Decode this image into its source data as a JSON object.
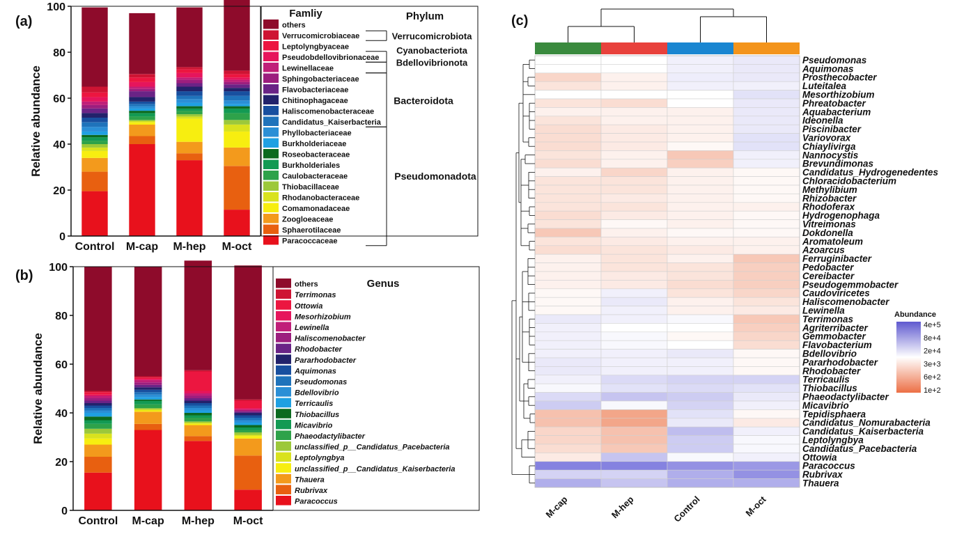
{
  "panel_labels": {
    "a": "(a)",
    "b": "(b)",
    "c": "(c)"
  },
  "chart_data": [
    {
      "panel": "a",
      "type": "bar",
      "stacked": true,
      "ylabel": "Relative abundance",
      "ylim": [
        0,
        100
      ],
      "yticks": [
        "0",
        "20",
        "40",
        "60",
        "80",
        "100"
      ],
      "categories": [
        "Control",
        "M-cap",
        "M-hep",
        "M-oct"
      ],
      "legend_title": "Famliy",
      "legend_title2": "Phylum",
      "series": [
        {
          "name": "Paracoccaceae",
          "color": "#e8111c",
          "values": [
            19.5,
            40,
            33,
            11.5
          ]
        },
        {
          "name": "Sphaerotilaceae",
          "color": "#e86010",
          "values": [
            8.5,
            3.5,
            3,
            19
          ]
        },
        {
          "name": "Zoogloeaceae",
          "color": "#f39a1c",
          "values": [
            6,
            5,
            5,
            8
          ]
        },
        {
          "name": "Comamonadaceae",
          "color": "#f7ee10",
          "values": [
            3,
            1,
            10,
            7
          ]
        },
        {
          "name": "Rhodanobacteraceae",
          "color": "#d9e21e",
          "values": [
            1.5,
            0.5,
            1,
            3
          ]
        },
        {
          "name": "Thiobacillaceae",
          "color": "#9cc83a",
          "values": [
            1.5,
            0.5,
            1,
            2
          ]
        },
        {
          "name": "Caulobacteraceae",
          "color": "#2ea24a",
          "values": [
            1.5,
            1.5,
            1.5,
            3
          ]
        },
        {
          "name": "Burkholderiales",
          "color": "#139a53",
          "values": [
            1.5,
            1.5,
            1,
            2
          ]
        },
        {
          "name": "Roseobacteraceae",
          "color": "#0c6a1f",
          "values": [
            1,
            1,
            1,
            1
          ]
        },
        {
          "name": "Burkholderiaceae",
          "color": "#1fa0e2",
          "values": [
            1.5,
            1,
            1.5,
            1
          ]
        },
        {
          "name": "Phyllobacteriaceae",
          "color": "#2b8fd6",
          "values": [
            2,
            1,
            1.5,
            1.5
          ]
        },
        {
          "name": "Candidatus_Kaiserbacteria",
          "color": "#1f73bb",
          "values": [
            2,
            1,
            1.5,
            2
          ]
        },
        {
          "name": "Haliscomenobacteraceae",
          "color": "#184f9f",
          "values": [
            2,
            1,
            2,
            2
          ]
        },
        {
          "name": "Chitinophagaceae",
          "color": "#22226b",
          "values": [
            2,
            2,
            2,
            1.5
          ]
        },
        {
          "name": "Flavobacteriaceae",
          "color": "#6a2386",
          "values": [
            2,
            2.5,
            1.5,
            1.5
          ]
        },
        {
          "name": "Sphingobacteriaceae",
          "color": "#9c1e7e",
          "values": [
            1.5,
            1,
            1.5,
            1
          ]
        },
        {
          "name": "Lewinellaceae",
          "color": "#c01f79",
          "values": [
            1.5,
            1,
            1,
            1
          ]
        },
        {
          "name": "Pseudobdellovibrionaceae",
          "color": "#e6155c",
          "values": [
            2,
            2,
            2,
            1
          ]
        },
        {
          "name": "Leptolyngbyaceae",
          "color": "#ec1640",
          "values": [
            2,
            2,
            1.5,
            1.5
          ]
        },
        {
          "name": "Verrucomicrobiaceae",
          "color": "#ce1433",
          "values": [
            2.5,
            1.5,
            1,
            1.5
          ]
        },
        {
          "name": "others",
          "color": "#8e0b2b",
          "values": [
            34.5,
            26.5,
            26,
            31
          ]
        }
      ],
      "phyla": [
        "Verrucomicrobiota",
        "Cyanobacteriota",
        "Bdellovibrionota",
        "Bacteroidota",
        "Pseudomonadota"
      ]
    },
    {
      "panel": "b",
      "type": "bar",
      "stacked": true,
      "ylabel": "Relative abundance",
      "ylim": [
        0,
        100
      ],
      "yticks": [
        "0",
        "20",
        "40",
        "60",
        "80",
        "100"
      ],
      "categories": [
        "Control",
        "M-cap",
        "M-hep",
        "M-oct"
      ],
      "legend_title": "Genus",
      "series": [
        {
          "name": "Paracoccus",
          "color": "#e8111c",
          "values": [
            15.5,
            33,
            28.5,
            8.5
          ]
        },
        {
          "name": "Rubrivax",
          "color": "#e86010",
          "values": [
            6.5,
            2.5,
            2,
            14
          ]
        },
        {
          "name": "Thauera",
          "color": "#f39a1c",
          "values": [
            5,
            5,
            4.5,
            7
          ]
        },
        {
          "name": "unclassified_p__Candidatus_Kaiserbacteria",
          "color": "#f7ee10",
          "values": [
            2.5,
            0.5,
            0.5,
            1
          ]
        },
        {
          "name": "Leptolyngbya",
          "color": "#d9e21e",
          "values": [
            2,
            0.5,
            0.5,
            0.5
          ]
        },
        {
          "name": "unclassified_p__Candidatus_Pacebacteria",
          "color": "#9cc83a",
          "values": [
            2,
            0.5,
            0.5,
            1
          ]
        },
        {
          "name": "Phaeodactylibacter",
          "color": "#2ea24a",
          "values": [
            2,
            1.5,
            1.5,
            1
          ]
        },
        {
          "name": "Micavibrio",
          "color": "#139a53",
          "values": [
            1.5,
            1.5,
            1,
            1
          ]
        },
        {
          "name": "Thiobacillus",
          "color": "#0c6a1f",
          "values": [
            1.5,
            0.5,
            1,
            1
          ]
        },
        {
          "name": "Terricaulis",
          "color": "#1fa0e2",
          "values": [
            1.5,
            1,
            1,
            1
          ]
        },
        {
          "name": "Bdellovibrio",
          "color": "#2b8fd6",
          "values": [
            1,
            1,
            1,
            1
          ]
        },
        {
          "name": "Pseudomonas",
          "color": "#1f73bb",
          "values": [
            1,
            1,
            1,
            1
          ]
        },
        {
          "name": "Aquimonas",
          "color": "#184f9f",
          "values": [
            1,
            1,
            1,
            1
          ]
        },
        {
          "name": "Pararhodobacter",
          "color": "#22226b",
          "values": [
            1,
            1,
            1,
            1
          ]
        },
        {
          "name": "Rhodobacter",
          "color": "#6a2386",
          "values": [
            1,
            1,
            1,
            0.5
          ]
        },
        {
          "name": "Haliscomenobacter",
          "color": "#9c1e7e",
          "values": [
            1,
            1,
            1,
            0.5
          ]
        },
        {
          "name": "Lewinella",
          "color": "#c01f79",
          "values": [
            1,
            1,
            1,
            0.5
          ]
        },
        {
          "name": "Mesorhizobium",
          "color": "#e6155c",
          "values": [
            0.5,
            0.5,
            1,
            0.5
          ]
        },
        {
          "name": "Ottowia",
          "color": "#ec1640",
          "values": [
            1,
            0.5,
            8,
            3
          ]
        },
        {
          "name": "Terrimonas",
          "color": "#ce1433",
          "values": [
            0.5,
            0.5,
            0.5,
            0.5
          ]
        },
        {
          "name": "others",
          "color": "#8e0b2b",
          "values": [
            51,
            45,
            45,
            55
          ]
        }
      ]
    },
    {
      "panel": "c",
      "type": "heatmap",
      "columns": [
        "M-cap",
        "M-hep",
        "Control",
        "M-oct"
      ],
      "column_colors": [
        "#3a8a3e",
        "#e8413c",
        "#1a86d1",
        "#f3941c"
      ],
      "legend_title": "Abundance",
      "legend_ticks": [
        "4e+5",
        "8e+4",
        "2e+4",
        "3e+3",
        "6e+2",
        "1e+2"
      ],
      "rows": [
        {
          "name": "Pseudomonas",
          "color": "#e8111c",
          "values": [
            0,
            0,
            0.1,
            0.15
          ]
        },
        {
          "name": "Aquimonas",
          "color": "#1fa9e2",
          "values": [
            0,
            0,
            0.1,
            0.15
          ]
        },
        {
          "name": "Prosthecobacter",
          "color": "#111111",
          "values": [
            -0.3,
            -0.1,
            0.12,
            0.15
          ]
        },
        {
          "name": "Luteitalea",
          "color": "#111111",
          "values": [
            -0.2,
            -0.1,
            0.1,
            0.1
          ]
        },
        {
          "name": "Mesorthizobium",
          "color": "#111111",
          "values": [
            0,
            0,
            0,
            0.2
          ]
        },
        {
          "name": "Phreatobacter",
          "color": "#111111",
          "values": [
            -0.2,
            -0.25,
            0,
            0.15
          ]
        },
        {
          "name": "Aquabacterium",
          "color": "#111111",
          "values": [
            -0.1,
            -0.1,
            -0.1,
            0.15
          ]
        },
        {
          "name": "Ideonella",
          "color": "#111111",
          "values": [
            -0.2,
            -0.1,
            -0.1,
            0.15
          ]
        },
        {
          "name": "Piscinibacter",
          "color": "#111111",
          "values": [
            -0.25,
            -0.15,
            -0.1,
            0.15
          ]
        },
        {
          "name": "Variovorax",
          "color": "#c79412",
          "values": [
            -0.25,
            -0.15,
            -0.1,
            0.2
          ]
        },
        {
          "name": "Chiaylivirga",
          "color": "#111111",
          "values": [
            -0.25,
            -0.15,
            -0.05,
            0.2
          ]
        },
        {
          "name": "Nannocystis",
          "color": "#e8111c",
          "values": [
            -0.2,
            -0.1,
            -0.4,
            0.1
          ]
        },
        {
          "name": "Brevundimonas",
          "color": "#c79412",
          "values": [
            -0.25,
            -0.1,
            -0.35,
            0.1
          ]
        },
        {
          "name": "Candidatus_Hydrogenedentes",
          "color": "#111111",
          "values": [
            -0.1,
            -0.3,
            -0.1,
            -0.05
          ]
        },
        {
          "name": "Chloracidobacterium",
          "color": "#111111",
          "values": [
            -0.2,
            -0.2,
            -0.1,
            -0.05
          ]
        },
        {
          "name": "Methylibium",
          "color": "#111111",
          "values": [
            -0.2,
            -0.2,
            -0.1,
            -0.05
          ]
        },
        {
          "name": "Rhizobacter",
          "color": "#111111",
          "values": [
            -0.2,
            -0.15,
            -0.1,
            -0.05
          ]
        },
        {
          "name": "Rhodoferax",
          "color": "#111111",
          "values": [
            -0.2,
            -0.2,
            -0.1,
            -0.1
          ]
        },
        {
          "name": "Hydrogenophaga",
          "color": "#c79412",
          "values": [
            -0.25,
            -0.15,
            -0.1,
            -0.05
          ]
        },
        {
          "name": "Vitreimonas",
          "color": "#111111",
          "values": [
            -0.2,
            -0.05,
            -0.1,
            -0.05
          ]
        },
        {
          "name": "Dokdonella",
          "color": "#111111",
          "values": [
            -0.4,
            -0.1,
            -0.05,
            -0.05
          ]
        },
        {
          "name": "Aromatoleum",
          "color": "#111111",
          "values": [
            -0.2,
            -0.15,
            -0.1,
            -0.1
          ]
        },
        {
          "name": "Azoarcus",
          "color": "#1fa9e2",
          "values": [
            -0.25,
            -0.2,
            -0.15,
            -0.1
          ]
        },
        {
          "name": "Ferruginibacter",
          "color": "#111111",
          "values": [
            -0.1,
            -0.2,
            -0.1,
            -0.4
          ]
        },
        {
          "name": "Pedobacter",
          "color": "#111111",
          "values": [
            -0.1,
            -0.2,
            -0.2,
            -0.35
          ]
        },
        {
          "name": "Cereibacter",
          "color": "#111111",
          "values": [
            -0.1,
            -0.15,
            -0.2,
            -0.35
          ]
        },
        {
          "name": "Pseudogemmobacter",
          "color": "#111111",
          "values": [
            -0.1,
            -0.15,
            -0.25,
            -0.35
          ]
        },
        {
          "name": "Caudoviricetes",
          "color": "#111111",
          "values": [
            -0.05,
            0.1,
            -0.2,
            -0.3
          ]
        },
        {
          "name": "Haliscomenobacter",
          "color": "#111111",
          "values": [
            -0.05,
            0.15,
            -0.1,
            -0.2
          ]
        },
        {
          "name": "Lewinella",
          "color": "#111111",
          "values": [
            -0.05,
            0.1,
            -0.1,
            -0.15
          ]
        },
        {
          "name": "Terrimonas",
          "color": "#111111",
          "values": [
            0.15,
            0.1,
            0.05,
            -0.4
          ]
        },
        {
          "name": "Agriterribacter",
          "color": "#111111",
          "values": [
            0.1,
            0,
            0,
            -0.35
          ]
        },
        {
          "name": "Gemmobacter",
          "color": "#111111",
          "values": [
            0.1,
            0.05,
            -0.05,
            -0.3
          ]
        },
        {
          "name": "Flavobacterium",
          "color": "#c79412",
          "values": [
            0.1,
            0.05,
            0,
            -0.25
          ]
        },
        {
          "name": "Bdellovibrio",
          "color": "#111111",
          "values": [
            0.1,
            0.1,
            0.15,
            -0.05
          ]
        },
        {
          "name": "Pararhodobacter",
          "color": "#1fa9e2",
          "values": [
            0.15,
            0.1,
            0.1,
            -0.05
          ]
        },
        {
          "name": "Rhodobacter",
          "color": "#c79412",
          "values": [
            0.15,
            0.1,
            0.1,
            -0.05
          ]
        },
        {
          "name": "Terricaulis",
          "color": "#111111",
          "values": [
            0.1,
            0.25,
            0.3,
            0.3
          ]
        },
        {
          "name": "Thiobacillus",
          "color": "#111111",
          "values": [
            0.05,
            0.2,
            0.25,
            0.2
          ]
        },
        {
          "name": "Phaeodactylibacter",
          "color": "#111111",
          "values": [
            0.25,
            0.4,
            0.35,
            0.15
          ]
        },
        {
          "name": "Micavibrio",
          "color": "#111111",
          "values": [
            0.35,
            0.05,
            0.3,
            0.1
          ]
        },
        {
          "name": "Tepidisphaera",
          "color": "#111111",
          "values": [
            -0.45,
            -0.65,
            0.2,
            -0.05
          ]
        },
        {
          "name": "Candidatus_Nomurabacteria",
          "color": "#111111",
          "values": [
            -0.45,
            -0.65,
            0.15,
            -0.15
          ]
        },
        {
          "name": "Candidatus_Kaiserbacteria",
          "color": "#111111",
          "values": [
            -0.3,
            -0.45,
            0.45,
            0.1
          ]
        },
        {
          "name": "Leptolyngbya",
          "color": "#c79412",
          "values": [
            -0.3,
            -0.45,
            0.35,
            0.05
          ]
        },
        {
          "name": "Candidatus_Pacebacteria",
          "color": "#111111",
          "values": [
            -0.25,
            -0.4,
            0.35,
            0.05
          ]
        },
        {
          "name": "Ottowia",
          "color": "#111111",
          "values": [
            -0.15,
            0.4,
            0.05,
            0.1
          ]
        },
        {
          "name": "Paracoccus",
          "color": "#1fa9e2",
          "values": [
            0.85,
            0.85,
            0.75,
            0.7
          ]
        },
        {
          "name": "Rubrivax",
          "color": "#1fa9e2",
          "values": [
            0.3,
            0.3,
            0.55,
            0.75
          ]
        },
        {
          "name": "Thauera",
          "color": "#c79412",
          "values": [
            0.55,
            0.4,
            0.55,
            0.55
          ]
        }
      ]
    }
  ]
}
